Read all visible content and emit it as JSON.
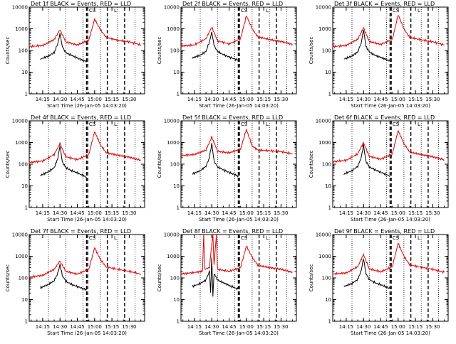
{
  "figure": {
    "background": "#ffffff",
    "events_color": "#000000",
    "lld_color": "#e00000"
  },
  "chart_data": [
    {
      "type": "line",
      "title": "Det 1f BLACK = Events, RED = LLD",
      "xlabel": "Start Time (26-Jan-05 14:03:20)",
      "ylabel": "Counts/sec",
      "y_scale": "log",
      "ylim": [
        1,
        10000
      ],
      "x_tick_labels": [
        "14:15",
        "14:30",
        "14:45",
        "15:00",
        "15:15",
        "15:30"
      ],
      "y_tick_labels": [
        "1",
        "10",
        "100",
        "1000",
        "10000"
      ],
      "annotations": [
        {
          "text": "CS",
          "time": "14:58"
        },
        {
          "text": "L",
          "time": "15:18"
        }
      ],
      "vertical_markers": {
        "dotted": [
          "14:20",
          "14:35",
          "14:50",
          "15:05",
          "15:20",
          "15:35"
        ],
        "dashed": [
          "14:53",
          "14:54",
          "15:11",
          "15:26"
        ]
      },
      "series": [
        {
          "name": "BLACK = Events",
          "x": [
            "14:13",
            "14:20",
            "14:25",
            "14:28",
            "14:30",
            "14:32",
            "14:35",
            "14:40",
            "14:45",
            "14:53"
          ],
          "y": [
            40,
            55,
            80,
            200,
            600,
            150,
            80,
            60,
            45,
            30
          ]
        },
        {
          "name": "RED = LLD",
          "x": [
            "14:03",
            "14:15",
            "14:25",
            "14:30",
            "14:35",
            "14:45",
            "14:55",
            "15:00",
            "15:05",
            "15:10",
            "15:20",
            "15:30",
            "15:40"
          ],
          "y": [
            150,
            170,
            320,
            900,
            250,
            180,
            300,
            2800,
            900,
            400,
            300,
            250,
            180
          ]
        }
      ]
    },
    {
      "type": "line",
      "title": "Det 2f BLACK = Events, RED = LLD",
      "xlabel": "Start Time (26-Jan-05 14:03:20)",
      "ylabel": "Counts/sec",
      "y_scale": "log",
      "ylim": [
        1,
        10000
      ],
      "x_tick_labels": [
        "14:15",
        "14:30",
        "14:45",
        "15:00",
        "15:15",
        "15:30"
      ],
      "y_tick_labels": [
        "1",
        "10",
        "100",
        "1000",
        "10000"
      ],
      "annotations": [
        {
          "text": "CS",
          "time": "14:58"
        },
        {
          "text": "L",
          "time": "15:18"
        }
      ],
      "vertical_markers": {
        "dotted": [
          "14:20",
          "14:35",
          "14:50",
          "15:05",
          "15:20",
          "15:35"
        ],
        "dashed": [
          "14:53",
          "14:54",
          "15:11",
          "15:26"
        ]
      },
      "series": [
        {
          "name": "BLACK = Events",
          "x": [
            "14:13",
            "14:20",
            "14:25",
            "14:28",
            "14:30",
            "14:32",
            "14:35",
            "14:40",
            "14:45",
            "14:53"
          ],
          "y": [
            45,
            60,
            90,
            250,
            700,
            170,
            90,
            65,
            50,
            35
          ]
        },
        {
          "name": "RED = LLD",
          "x": [
            "14:03",
            "14:15",
            "14:25",
            "14:30",
            "14:35",
            "14:45",
            "14:55",
            "15:00",
            "15:05",
            "15:10",
            "15:20",
            "15:30",
            "15:40"
          ],
          "y": [
            160,
            180,
            350,
            1200,
            280,
            200,
            350,
            4000,
            1000,
            420,
            320,
            260,
            190
          ]
        }
      ]
    },
    {
      "type": "line",
      "title": "Det 3f BLACK = Events, RED = LLD",
      "xlabel": "Start Time (26-Jan-05 14:03:20)",
      "ylabel": "Counts/sec",
      "y_scale": "log",
      "ylim": [
        1,
        10000
      ],
      "x_tick_labels": [
        "14:15",
        "14:30",
        "14:45",
        "15:00",
        "15:15",
        "15:30"
      ],
      "y_tick_labels": [
        "1",
        "10",
        "100",
        "1000",
        "10000"
      ],
      "annotations": [
        {
          "text": "CS",
          "time": "14:58"
        },
        {
          "text": "L",
          "time": "15:18"
        }
      ],
      "vertical_markers": {
        "dotted": [
          "14:20",
          "14:35",
          "14:50",
          "15:05",
          "15:20",
          "15:35"
        ],
        "dashed": [
          "14:53",
          "14:54",
          "15:11",
          "15:26"
        ]
      },
      "series": [
        {
          "name": "BLACK = Events",
          "x": [
            "14:13",
            "14:20",
            "14:25",
            "14:28",
            "14:30",
            "14:32",
            "14:35",
            "14:40",
            "14:45",
            "14:53"
          ],
          "y": [
            40,
            55,
            85,
            220,
            900,
            160,
            85,
            60,
            48,
            32
          ]
        },
        {
          "name": "RED = LLD",
          "x": [
            "14:03",
            "14:15",
            "14:25",
            "14:30",
            "14:35",
            "14:45",
            "14:55",
            "15:00",
            "15:05",
            "15:10",
            "15:20",
            "15:30",
            "15:40"
          ],
          "y": [
            150,
            170,
            330,
            1100,
            260,
            190,
            330,
            4500,
            1000,
            400,
            310,
            250,
            180
          ]
        }
      ]
    },
    {
      "type": "line",
      "title": "Det 4f BLACK = Events, RED = LLD",
      "xlabel": "Start Time (26-Jan-05 14:03:20)",
      "ylabel": "Counts/sec",
      "y_scale": "log",
      "ylim": [
        1,
        10000
      ],
      "x_tick_labels": [
        "14:15",
        "14:30",
        "14:45",
        "15:00",
        "15:15",
        "15:30"
      ],
      "y_tick_labels": [
        "1",
        "10",
        "100",
        "1000",
        "10000"
      ],
      "annotations": [
        {
          "text": "CS",
          "time": "14:58"
        },
        {
          "text": "L",
          "time": "15:18"
        }
      ],
      "vertical_markers": {
        "dotted": [
          "14:20",
          "14:35",
          "14:50",
          "15:05",
          "15:20",
          "15:35"
        ],
        "dashed": [
          "14:53",
          "14:54",
          "15:11",
          "15:26"
        ]
      },
      "series": [
        {
          "name": "BLACK = Events",
          "x": [
            "14:13",
            "14:20",
            "14:25",
            "14:28",
            "14:30",
            "14:32",
            "14:35",
            "14:40",
            "14:45",
            "14:53"
          ],
          "y": [
            30,
            45,
            70,
            180,
            700,
            130,
            70,
            50,
            40,
            25
          ]
        },
        {
          "name": "RED = LLD",
          "x": [
            "14:03",
            "14:15",
            "14:25",
            "14:30",
            "14:35",
            "14:45",
            "14:55",
            "15:00",
            "15:05",
            "15:10",
            "15:20",
            "15:30",
            "15:40"
          ],
          "y": [
            120,
            140,
            280,
            900,
            220,
            160,
            280,
            3200,
            800,
            340,
            260,
            210,
            150
          ]
        }
      ]
    },
    {
      "type": "line",
      "title": "Det 5f BLACK = Events, RED = LLD",
      "xlabel": "Start Time (26-Jan-05 14:03:20)",
      "ylabel": "Counts/sec",
      "y_scale": "log",
      "ylim": [
        1,
        10000
      ],
      "x_tick_labels": [
        "14:15",
        "14:30",
        "14:45",
        "15:00",
        "15:15",
        "15:30"
      ],
      "y_tick_labels": [
        "1",
        "10",
        "100",
        "1000",
        "10000"
      ],
      "annotations": [
        {
          "text": "CS",
          "time": "14:58"
        },
        {
          "text": "L",
          "time": "15:18"
        }
      ],
      "vertical_markers": {
        "dotted": [
          "14:20",
          "14:35",
          "14:50",
          "15:05",
          "15:20",
          "15:35"
        ],
        "dashed": [
          "14:53",
          "14:54",
          "15:11",
          "15:26"
        ]
      },
      "series": [
        {
          "name": "BLACK = Events",
          "x": [
            "14:13",
            "14:20",
            "14:25",
            "14:28",
            "14:30",
            "14:32",
            "14:35",
            "14:40",
            "14:45",
            "14:53"
          ],
          "y": [
            35,
            50,
            80,
            200,
            900,
            140,
            75,
            55,
            42,
            28
          ]
        },
        {
          "name": "RED = LLD",
          "x": [
            "14:03",
            "14:15",
            "14:25",
            "14:30",
            "14:35",
            "14:45",
            "14:55",
            "15:00",
            "15:05",
            "15:10",
            "15:20",
            "15:30",
            "15:40"
          ],
          "y": [
            250,
            280,
            450,
            1800,
            400,
            330,
            500,
            4000,
            700,
            450,
            420,
            380,
            300
          ]
        }
      ]
    },
    {
      "type": "line",
      "title": "Det 6f BLACK = Events, RED = LLD",
      "xlabel": "Start Time (26-Jan-05 14:03:20)",
      "ylabel": "Counts/sec",
      "y_scale": "log",
      "ylim": [
        1,
        10000
      ],
      "x_tick_labels": [
        "14:15",
        "14:30",
        "14:45",
        "15:00",
        "15:15",
        "15:30"
      ],
      "y_tick_labels": [
        "1",
        "10",
        "100",
        "1000",
        "10000"
      ],
      "annotations": [
        {
          "text": "CS",
          "time": "14:58"
        },
        {
          "text": "L",
          "time": "15:18"
        }
      ],
      "vertical_markers": {
        "dotted": [
          "14:20",
          "14:35",
          "14:50",
          "15:05",
          "15:20",
          "15:35"
        ],
        "dashed": [
          "14:53",
          "14:54",
          "15:11",
          "15:26"
        ]
      },
      "series": [
        {
          "name": "BLACK = Events",
          "x": [
            "14:13",
            "14:20",
            "14:25",
            "14:28",
            "14:30",
            "14:32",
            "14:35",
            "14:40",
            "14:45",
            "14:53"
          ],
          "y": [
            35,
            50,
            80,
            200,
            750,
            140,
            75,
            55,
            42,
            28
          ]
        },
        {
          "name": "RED = LLD",
          "x": [
            "14:03",
            "14:15",
            "14:25",
            "14:30",
            "14:35",
            "14:45",
            "14:55",
            "15:00",
            "15:05",
            "15:10",
            "15:20",
            "15:30",
            "15:40"
          ],
          "y": [
            130,
            150,
            300,
            1000,
            230,
            170,
            300,
            3500,
            900,
            360,
            280,
            220,
            160
          ]
        }
      ]
    },
    {
      "type": "line",
      "title": "Det 7f BLACK = Events, RED = LLD",
      "xlabel": "Start Time (26-Jan-05 14:03:20)",
      "ylabel": "Counts/sec",
      "y_scale": "log",
      "ylim": [
        1,
        10000
      ],
      "x_tick_labels": [
        "14:15",
        "14:30",
        "14:45",
        "15:00",
        "15:15",
        "15:30"
      ],
      "y_tick_labels": [
        "1",
        "10",
        "100",
        "1000",
        "10000"
      ],
      "annotations": [
        {
          "text": "CS",
          "time": "14:58"
        },
        {
          "text": "L",
          "time": "15:18"
        }
      ],
      "vertical_markers": {
        "dotted": [
          "14:20",
          "14:35",
          "14:50",
          "15:05",
          "15:20",
          "15:35"
        ],
        "dashed": [
          "14:53",
          "14:54",
          "15:11",
          "15:26"
        ]
      },
      "series": [
        {
          "name": "BLACK = Events",
          "x": [
            "14:13",
            "14:20",
            "14:25",
            "14:28",
            "14:30",
            "14:32",
            "14:35",
            "14:40",
            "14:45",
            "14:53"
          ],
          "y": [
            35,
            50,
            75,
            160,
            400,
            130,
            70,
            50,
            40,
            28
          ]
        },
        {
          "name": "RED = LLD",
          "x": [
            "14:03",
            "14:15",
            "14:25",
            "14:30",
            "14:35",
            "14:45",
            "14:55",
            "15:00",
            "15:05",
            "15:10",
            "15:20",
            "15:30",
            "15:40"
          ],
          "y": [
            110,
            130,
            250,
            600,
            200,
            150,
            250,
            2500,
            700,
            320,
            250,
            200,
            150
          ]
        }
      ]
    },
    {
      "type": "line",
      "title": "Det 8f BLACK = Events, RED = LLD",
      "xlabel": "Start Time (26-Jan-05 14:03:20)",
      "ylabel": "Counts/sec",
      "y_scale": "log",
      "ylim": [
        1,
        10000
      ],
      "x_tick_labels": [
        "14:15",
        "14:30",
        "14:45",
        "15:00",
        "15:15",
        "15:30"
      ],
      "y_tick_labels": [
        "1",
        "10",
        "100",
        "1000",
        "10000"
      ],
      "annotations": [
        {
          "text": "CS",
          "time": "14:58"
        },
        {
          "text": "L",
          "time": "15:18"
        }
      ],
      "vertical_markers": {
        "dotted": [
          "14:20",
          "14:35",
          "14:50",
          "15:05",
          "15:20",
          "15:35"
        ],
        "dashed": [
          "14:53",
          "14:54",
          "15:11",
          "15:26"
        ]
      },
      "series": [
        {
          "name": "BLACK = Events",
          "x": [
            "14:13",
            "14:20",
            "14:25",
            "14:28",
            "14:29",
            "14:30",
            "14:31",
            "14:32",
            "14:35",
            "14:40",
            "14:45",
            "14:53"
          ],
          "y": [
            40,
            55,
            80,
            200,
            20,
            900,
            15,
            160,
            80,
            60,
            45,
            30
          ]
        },
        {
          "name": "RED = LLD",
          "x": [
            "14:03",
            "14:15",
            "14:22",
            "14:23",
            "14:24",
            "14:28",
            "14:30",
            "14:31",
            "14:32",
            "14:34",
            "14:35",
            "14:45",
            "14:55",
            "15:00",
            "15:05",
            "15:10",
            "15:20",
            "15:30",
            "15:40"
          ],
          "y": [
            150,
            180,
            200,
            10000,
            250,
            300,
            3500,
            10000,
            400,
            10000,
            250,
            200,
            300,
            3000,
            900,
            380,
            300,
            250,
            180
          ]
        }
      ]
    },
    {
      "type": "line",
      "title": "Det 9f BLACK = Events, RED = LLD",
      "xlabel": "Start Time (26-Jan-05 14:03:20)",
      "ylabel": "Counts/sec",
      "y_scale": "log",
      "ylim": [
        1,
        10000
      ],
      "x_tick_labels": [
        "14:15",
        "14:30",
        "14:45",
        "15:00",
        "15:15",
        "15:30"
      ],
      "y_tick_labels": [
        "1",
        "10",
        "100",
        "1000",
        "10000"
      ],
      "annotations": [
        {
          "text": "CS",
          "time": "14:58"
        },
        {
          "text": "L",
          "time": "15:18"
        }
      ],
      "vertical_markers": {
        "dotted": [
          "14:20",
          "14:35",
          "14:50",
          "15:05",
          "15:20",
          "15:35"
        ],
        "dashed": [
          "14:53",
          "14:54",
          "15:11",
          "15:26"
        ]
      },
      "series": [
        {
          "name": "BLACK = Events",
          "x": [
            "14:13",
            "14:20",
            "14:25",
            "14:28",
            "14:30",
            "14:32",
            "14:35",
            "14:40",
            "14:45",
            "14:53"
          ],
          "y": [
            40,
            55,
            85,
            220,
            800,
            160,
            85,
            60,
            48,
            32
          ]
        },
        {
          "name": "RED = LLD",
          "x": [
            "14:03",
            "14:15",
            "14:25",
            "14:30",
            "14:35",
            "14:45",
            "14:55",
            "15:00",
            "15:05",
            "15:10",
            "15:20",
            "15:30",
            "15:40"
          ],
          "y": [
            150,
            170,
            330,
            1200,
            260,
            190,
            330,
            4000,
            1000,
            400,
            310,
            250,
            180
          ]
        }
      ]
    }
  ]
}
